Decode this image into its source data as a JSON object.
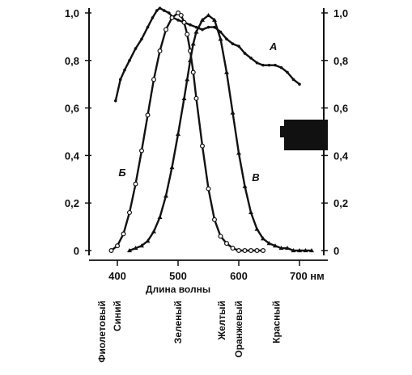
{
  "chart_data": {
    "type": "line",
    "xlabel": "Длина волны",
    "x_ticks": [
      "400",
      "500",
      "600",
      "700 нм"
    ],
    "x_tick_values": [
      400,
      500,
      600,
      700
    ],
    "xlim": [
      350,
      740
    ],
    "y_ticks_left": [
      "0",
      "0,2",
      "0,4",
      "0,6",
      "0,8",
      "1,0"
    ],
    "y_ticks_right": [
      "0",
      "0,2",
      "0,4",
      "0,6",
      "0,8",
      "1,0"
    ],
    "y_tick_values": [
      0,
      0.2,
      0.4,
      0.6,
      0.8,
      1.0
    ],
    "ylim": [
      0,
      1.0
    ],
    "grid": false,
    "series": [
      {
        "name": "А",
        "marker": "dot",
        "x": [
          397,
          405,
          412,
          420,
          430,
          440,
          450,
          458,
          465,
          470,
          477,
          485,
          492,
          500,
          510,
          520,
          530,
          540,
          550,
          560,
          570,
          580,
          590,
          600,
          610,
          620,
          630,
          640,
          650,
          660,
          670,
          680,
          690,
          700
        ],
        "y": [
          0.63,
          0.72,
          0.76,
          0.8,
          0.85,
          0.89,
          0.94,
          0.98,
          1.01,
          1.02,
          1.01,
          1.0,
          0.98,
          0.97,
          0.96,
          0.95,
          0.94,
          0.93,
          0.94,
          0.94,
          0.92,
          0.89,
          0.87,
          0.86,
          0.83,
          0.81,
          0.79,
          0.78,
          0.78,
          0.78,
          0.77,
          0.75,
          0.72,
          0.7
        ]
      },
      {
        "name": "Б",
        "marker": "circle",
        "x": [
          390,
          400,
          410,
          420,
          430,
          440,
          450,
          460,
          470,
          480,
          490,
          500,
          505,
          510,
          515,
          520,
          525,
          530,
          540,
          550,
          560,
          570,
          580,
          590,
          600,
          610,
          620,
          630,
          640
        ],
        "y": [
          0.0,
          0.02,
          0.07,
          0.16,
          0.28,
          0.42,
          0.57,
          0.72,
          0.84,
          0.93,
          0.98,
          1.0,
          0.99,
          0.96,
          0.91,
          0.84,
          0.75,
          0.64,
          0.44,
          0.26,
          0.13,
          0.06,
          0.03,
          0.01,
          0.0,
          0.0,
          0.0,
          0.0,
          0.0
        ]
      },
      {
        "name": "В",
        "marker": "triangle",
        "x": [
          420,
          430,
          440,
          450,
          460,
          470,
          480,
          490,
          500,
          510,
          515,
          520,
          525,
          530,
          540,
          550,
          560,
          570,
          580,
          590,
          600,
          610,
          620,
          630,
          640,
          650,
          660,
          670,
          680,
          690,
          700,
          710,
          720
        ],
        "y": [
          0.0,
          0.01,
          0.02,
          0.04,
          0.08,
          0.14,
          0.23,
          0.35,
          0.49,
          0.64,
          0.72,
          0.8,
          0.87,
          0.92,
          0.97,
          0.99,
          0.97,
          0.89,
          0.75,
          0.58,
          0.41,
          0.27,
          0.16,
          0.09,
          0.05,
          0.03,
          0.02,
          0.01,
          0.01,
          0.0,
          0.0,
          0.0,
          0.0
        ]
      }
    ],
    "curve_labels": [
      {
        "text": "А",
        "x": 657,
        "y": 0.86
      },
      {
        "text": "Б",
        "x": 408,
        "y": 0.33
      },
      {
        "text": "В",
        "x": 628,
        "y": 0.31
      }
    ],
    "color_names": [
      {
        "text": "Фиолетовый",
        "x": 380
      },
      {
        "text": "Синий",
        "x": 405
      },
      {
        "text": "Зеленый",
        "x": 505
      },
      {
        "text": "Желтый",
        "x": 577
      },
      {
        "text": "Оранжевый",
        "x": 605
      },
      {
        "text": "Красный",
        "x": 667
      }
    ]
  }
}
